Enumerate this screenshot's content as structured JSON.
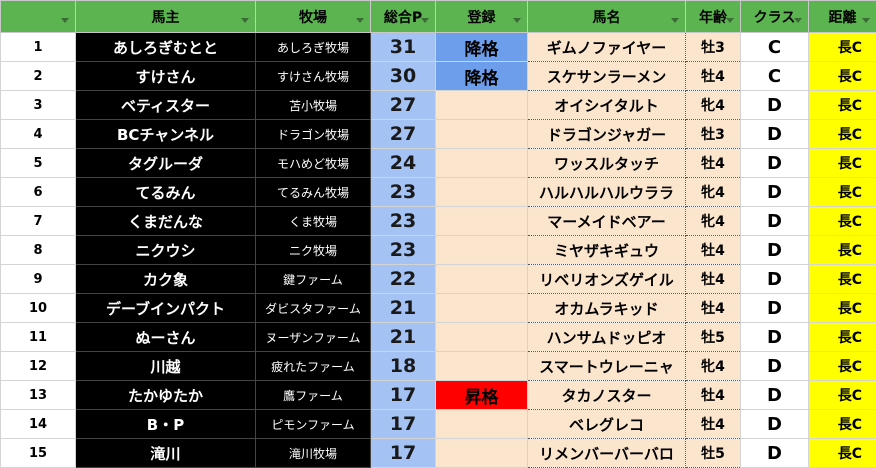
{
  "table": {
    "headers": [
      null,
      "馬主",
      "牧場",
      "総合P",
      "登録",
      "馬名",
      "年齢",
      "クラス",
      "距離"
    ],
    "registration_colors": {
      "降格": "#6d9eeb",
      "昇格": "#ff0000"
    },
    "rows": [
      [
        1,
        "あしろぎむとと",
        "あしろぎ牧場",
        31,
        "降格",
        "ギムノファイヤー",
        "牡3",
        "C",
        "長C"
      ],
      [
        2,
        "すけさん",
        "すけさん牧場",
        30,
        "降格",
        "スケサンラーメン",
        "牡4",
        "C",
        "長C"
      ],
      [
        3,
        "ベティスター",
        "苫小牧場",
        27,
        null,
        "オイシイタルト",
        "牝4",
        "D",
        "長C"
      ],
      [
        4,
        "BCチャンネル",
        "ドラゴン牧場",
        27,
        null,
        "ドラゴンジャガー",
        "牡3",
        "D",
        "長C"
      ],
      [
        5,
        "タグルーダ",
        "モハめど牧場",
        24,
        null,
        "ワッスルタッチ",
        "牡4",
        "D",
        "長C"
      ],
      [
        6,
        "てるみん",
        "てるみん牧場",
        23,
        null,
        "ハルハルハルウララ",
        "牝4",
        "D",
        "長C"
      ],
      [
        7,
        "くまだんな",
        "くま牧場",
        23,
        null,
        "マーメイドベアー",
        "牝4",
        "D",
        "長C"
      ],
      [
        8,
        "ニクウシ",
        "ニク牧場",
        23,
        null,
        "ミヤザキギュウ",
        "牡4",
        "D",
        "長C"
      ],
      [
        9,
        "カク象",
        "鍵ファーム",
        22,
        null,
        "リベリオンズゲイル",
        "牡4",
        "D",
        "長C"
      ],
      [
        10,
        "デーブインパクト",
        "ダビスタファーム",
        21,
        null,
        "オカムラキッド",
        "牡4",
        "D",
        "長C"
      ],
      [
        11,
        "ぬーさん",
        "ヌーザンファーム",
        21,
        null,
        "ハンサムドッピオ",
        "牡5",
        "D",
        "長C"
      ],
      [
        12,
        "川越",
        "疲れたファーム",
        18,
        null,
        "スマートウレーニャ",
        "牝4",
        "D",
        "長C"
      ],
      [
        13,
        "たかゆたか",
        "鷹ファーム",
        17,
        "昇格",
        "タカノスター",
        "牡4",
        "D",
        "長C"
      ],
      [
        14,
        "B・P",
        "ピモンファーム",
        17,
        null,
        "ベレグレコ",
        "牡4",
        "D",
        "長C"
      ],
      [
        15,
        "滝川",
        "滝川牧場",
        17,
        null,
        "リメンバーバーバロ",
        "牡5",
        "D",
        "長C"
      ]
    ]
  }
}
